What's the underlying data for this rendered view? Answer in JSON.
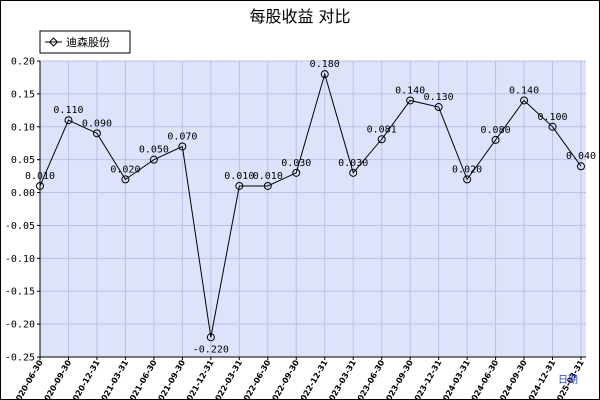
{
  "chart_data": {
    "type": "line",
    "title": "每股收益  对比",
    "xlabel": "日期",
    "ylabel": "",
    "ylim": [
      -0.25,
      0.2
    ],
    "yticks": [
      0.2,
      0.15,
      0.1,
      0.05,
      0.0,
      -0.05,
      -0.1,
      -0.15,
      -0.2,
      -0.25
    ],
    "ytick_labels": [
      "0.20",
      "0.15",
      "0.10",
      "0.05",
      "0.00",
      "-0.05",
      "-0.10",
      "-0.15",
      "-0.20",
      "-0.25"
    ],
    "grid": true,
    "legend_position": "top-left",
    "colors": {
      "plot_bg": "#dde3fa",
      "grid": "#b8c2e6",
      "line": "#000000",
      "xunit": "#2a3ec8"
    },
    "categories": [
      "2020-06-30",
      "2020-09-30",
      "2020-12-31",
      "2021-03-31",
      "2021-06-30",
      "2021-09-30",
      "2021-12-31",
      "2022-03-31",
      "2022-06-30",
      "2022-09-30",
      "2022-12-31",
      "2023-03-31",
      "2023-06-30",
      "2023-09-30",
      "2023-12-31",
      "2024-03-31",
      "2024-06-30",
      "2024-09-30",
      "2024-12-31",
      "2025-03-31"
    ],
    "category_labels": [
      "2020-06-30",
      "2020-09-30",
      "2020-12-31",
      "2021-03-31",
      "2021-06-30",
      "2021-09-30",
      "2021-12-31",
      "2022-03-31",
      "2022-06-30",
      "2022-09-30",
      "2022-12-31",
      "2023-03-31",
      "2023-06-30",
      "2023-09-30",
      "2023-12-31",
      "2024-03-31",
      "2024-06-30",
      "2024-09-30",
      "2024-12-31",
      "2025-03-31"
    ],
    "series": [
      {
        "name": "迪森股份",
        "values": [
          0.01,
          0.11,
          0.09,
          0.02,
          0.05,
          0.07,
          -0.22,
          0.01,
          0.01,
          0.03,
          0.18,
          0.03,
          0.081,
          0.14,
          0.13,
          0.02,
          0.08,
          0.14,
          0.1,
          0.04
        ],
        "labels": [
          "0.010",
          "0.110",
          "0.090",
          "0.020",
          "0.050",
          "0.070",
          "-0.220",
          "0.010",
          "0.010",
          "0.030",
          "0.180",
          "0.030",
          "0.081",
          "0.140",
          "0.130",
          "0.020",
          "0.080",
          "0.140",
          "0.100",
          "0.040"
        ]
      }
    ]
  }
}
